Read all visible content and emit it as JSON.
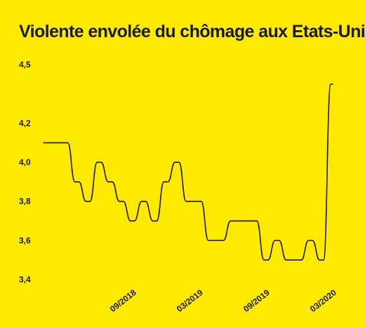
{
  "chart_data": {
    "type": "line",
    "title": "Violente envolée du chômage aux Etats-Unis",
    "xlabel": "",
    "ylabel": "",
    "ylim": [
      3.4,
      4.5
    ],
    "yticks": [
      "4,5",
      "4,2",
      "4,0",
      "3,8",
      "3,6",
      "3,4"
    ],
    "ytick_values": [
      4.5,
      4.2,
      4.0,
      3.8,
      3.6,
      3.4
    ],
    "x_tick_labels": [
      "09/2018",
      "03/2019",
      "09/2019",
      "03/2020"
    ],
    "x_tick_months": [
      "2018-09",
      "2019-03",
      "2019-09",
      "2020-03"
    ],
    "x": [
      "2018-01",
      "2018-02",
      "2018-03",
      "2018-04",
      "2018-05",
      "2018-06",
      "2018-07",
      "2018-08",
      "2018-09",
      "2018-10",
      "2018-11",
      "2018-12",
      "2019-01",
      "2019-02",
      "2019-03",
      "2019-04",
      "2019-05",
      "2019-06",
      "2019-07",
      "2019-08",
      "2019-09",
      "2019-10",
      "2019-11",
      "2019-12",
      "2020-01",
      "2020-02",
      "2020-03"
    ],
    "values": [
      4.1,
      4.1,
      4.1,
      3.9,
      3.8,
      4.0,
      3.9,
      3.8,
      3.7,
      3.8,
      3.7,
      3.9,
      4.0,
      3.8,
      3.8,
      3.6,
      3.6,
      3.7,
      3.7,
      3.7,
      3.5,
      3.6,
      3.5,
      3.5,
      3.6,
      3.5,
      4.4
    ],
    "grid": false,
    "colors": {
      "background": "#fdea00",
      "line": "#1a1a1a",
      "text": "#1a1a1a"
    }
  }
}
